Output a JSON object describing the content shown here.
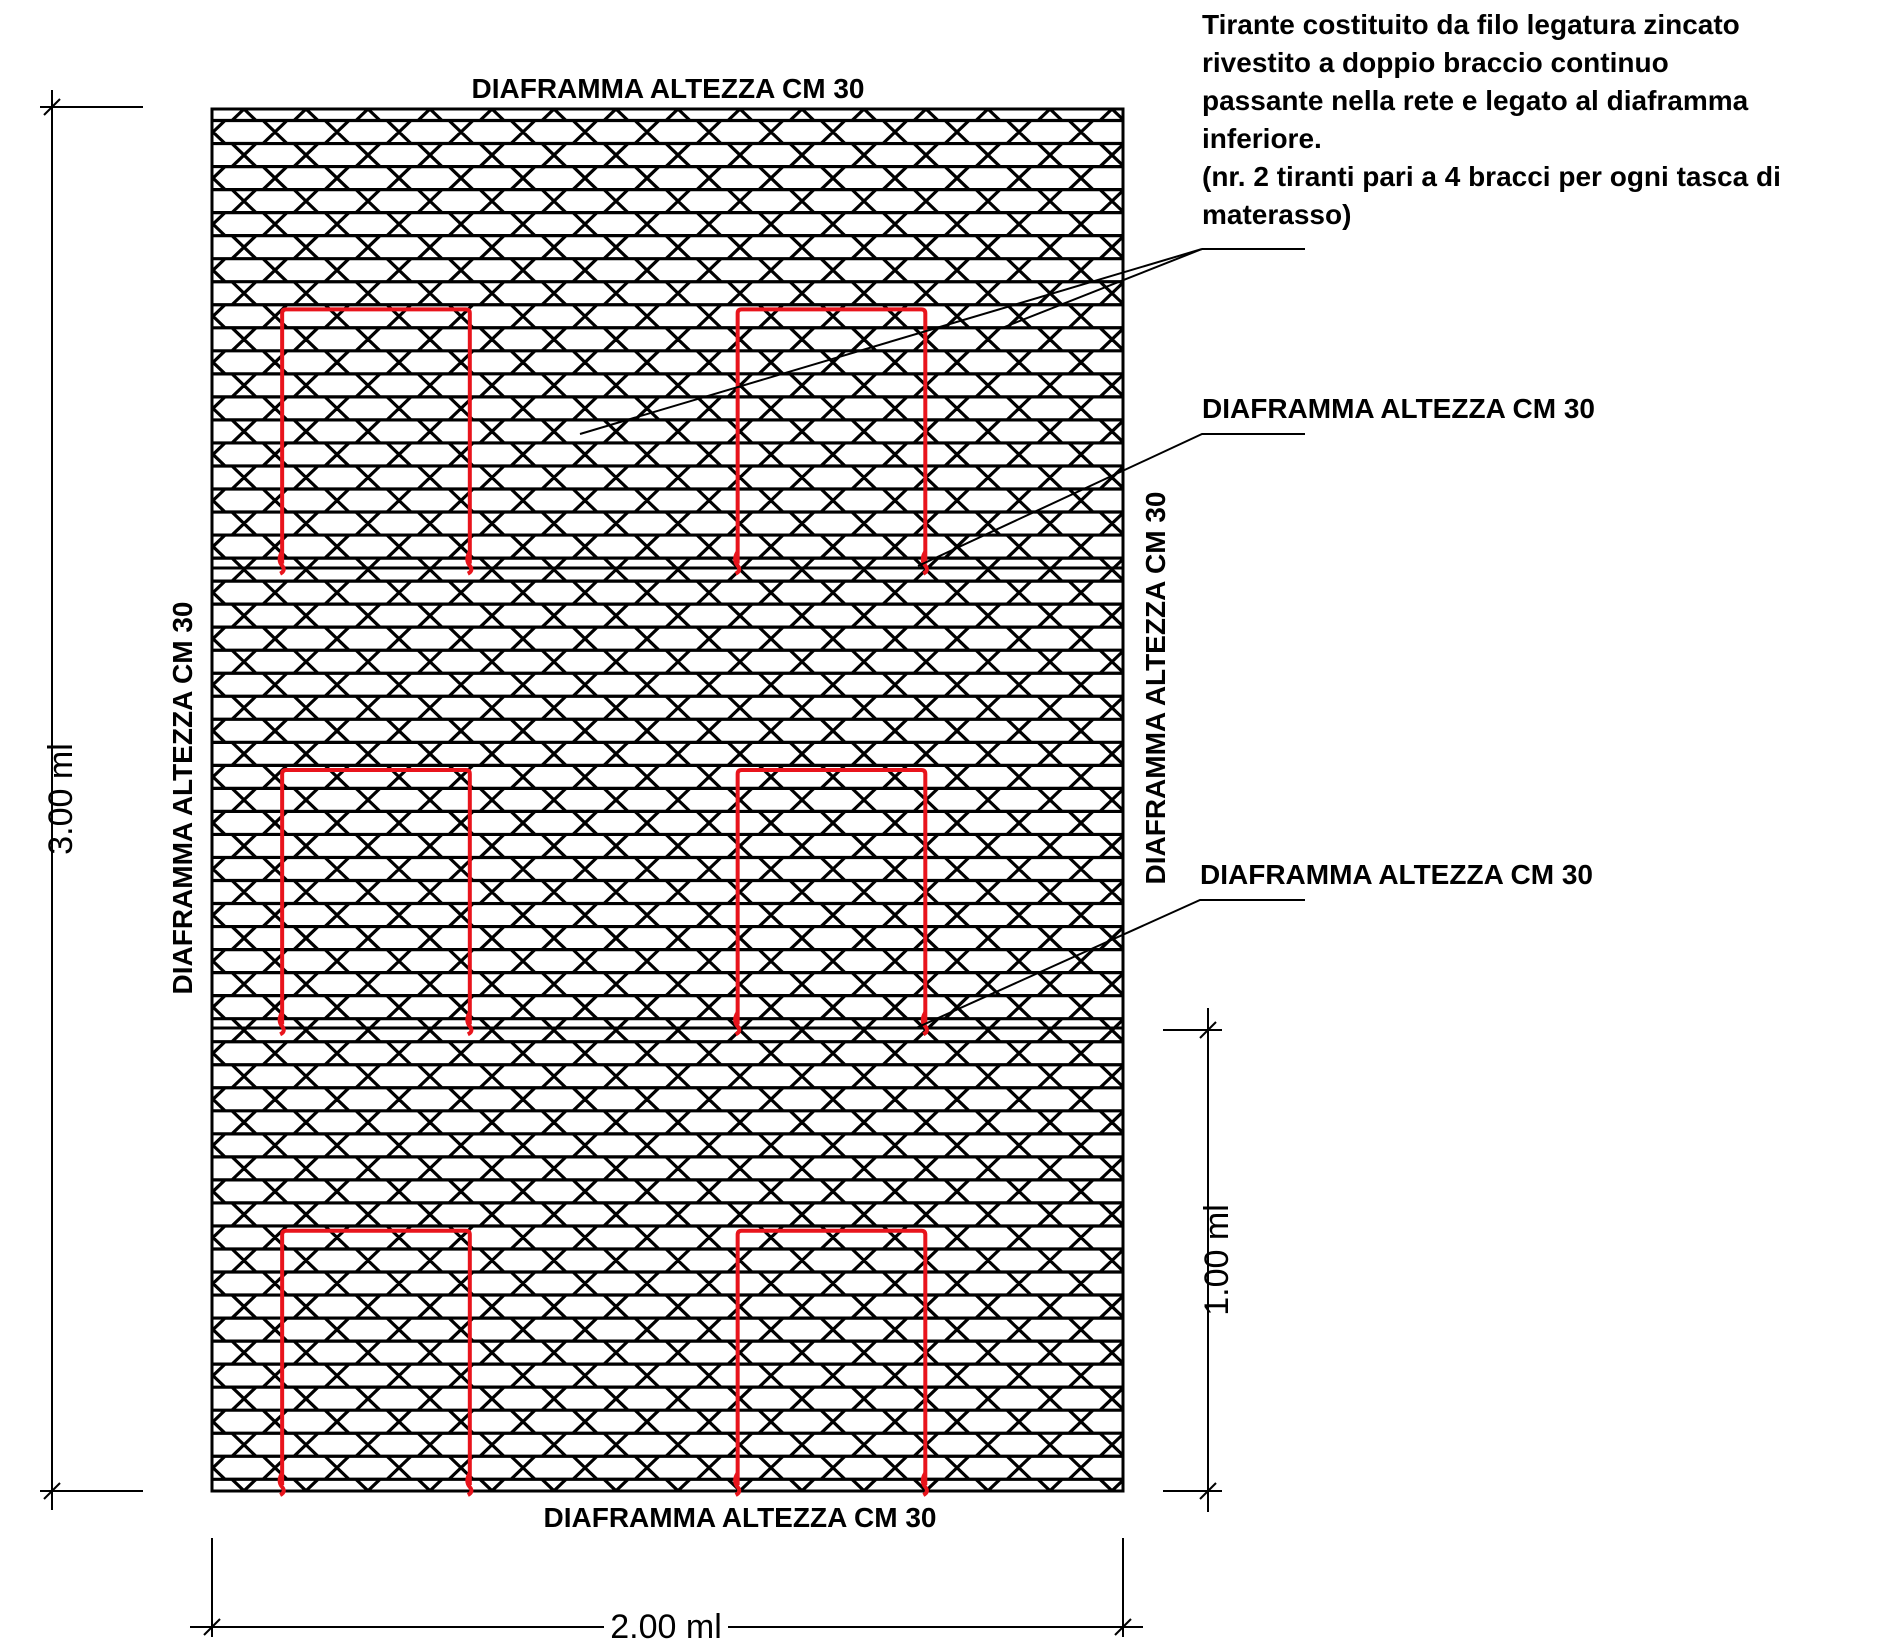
{
  "title_top": "DIAFRAMMA ALTEZZA CM 30",
  "title_bottom": "DIAFRAMMA ALTEZZA CM 30",
  "label_left_vertical": "DIAFRAMMA ALTEZZA CM 30",
  "label_right_vertical": "DIAFRAMMA ALTEZZA CM 30",
  "callouts": {
    "tie_rod_lines": [
      "Tirante costituito da filo legatura zincato",
      "rivestito a doppio braccio continuo",
      "passante nella rete e legato al diaframma",
      "inferiore.",
      "(nr. 2 tiranti pari a 4 bracci per ogni tasca di",
      "materasso)"
    ],
    "diaphragm_upper": "DIAFRAMMA ALTEZZA CM 30",
    "diaphragm_lower": "DIAFRAMMA ALTEZZA CM 30"
  },
  "dimensions": {
    "total_height": "3.00 ml",
    "pocket_height": "1.00 ml",
    "width": "2.00 ml"
  },
  "structure": {
    "pockets": 3,
    "ties_per_pocket": 2
  },
  "colors": {
    "line": "#000000",
    "tie_wire": "#e8141c",
    "background": "#ffffff"
  }
}
